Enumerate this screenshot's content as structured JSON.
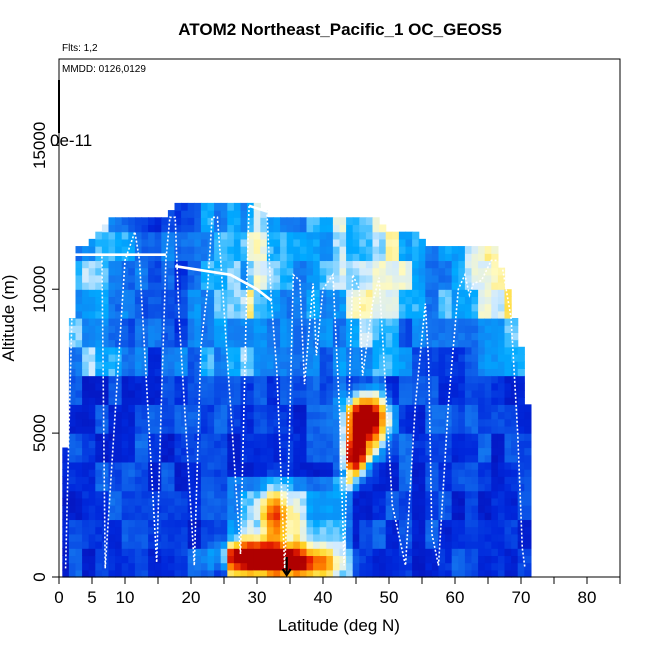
{
  "chart_data": {
    "type": "heatmap",
    "title": "ATOM2 Northeast_Pacific_1 OC_GEOS5",
    "subtitle_flights": "Flts: 1,2",
    "subtitle_dates": "MMDD: 0126,0129",
    "colorbar_max_label": "0e-11",
    "xlabel": "Latitude (deg N)",
    "ylabel": "Altitude (m)",
    "xlim": [
      0,
      85
    ],
    "ylim": [
      0,
      18000
    ],
    "x_ticks": [
      0,
      5,
      10,
      20,
      30,
      40,
      50,
      60,
      70,
      80
    ],
    "x_minor_ticks": [
      15,
      25,
      35,
      45,
      55,
      65,
      75,
      85
    ],
    "y_ticks": [
      0,
      5000,
      10000,
      15000
    ],
    "arrow_lat": 34.5,
    "curtain_tops": [
      [
        0.5,
        3000
      ],
      [
        1.5,
        6000
      ],
      [
        2,
        9000
      ],
      [
        3,
        11500
      ],
      [
        4,
        11500
      ],
      [
        6,
        12000
      ],
      [
        8,
        12300
      ],
      [
        10,
        12300
      ],
      [
        12,
        12500
      ],
      [
        14,
        12500
      ],
      [
        16,
        12500
      ],
      [
        18,
        12900
      ],
      [
        20,
        12900
      ],
      [
        22,
        12900
      ],
      [
        24,
        12900
      ],
      [
        26,
        12900
      ],
      [
        28,
        12900
      ],
      [
        30,
        12900
      ],
      [
        32,
        12500
      ],
      [
        34,
        12500
      ],
      [
        36,
        12500
      ],
      [
        38,
        12500
      ],
      [
        40,
        12500
      ],
      [
        42,
        12500
      ],
      [
        44,
        12300
      ],
      [
        46,
        12300
      ],
      [
        48,
        12300
      ],
      [
        50,
        12000
      ],
      [
        52,
        12000
      ],
      [
        54,
        12000
      ],
      [
        56,
        11500
      ],
      [
        58,
        11500
      ],
      [
        60,
        11500
      ],
      [
        62,
        11500
      ],
      [
        64,
        11500
      ],
      [
        66,
        11500
      ],
      [
        68,
        10000
      ],
      [
        69,
        9000
      ],
      [
        70,
        8000
      ],
      [
        71,
        6000
      ],
      [
        71.5,
        3000
      ]
    ],
    "hotspots": [
      {
        "lat": 46.5,
        "alt": 5500,
        "intensity": 1.0,
        "sx": 3.0,
        "sy": 900
      },
      {
        "lat": 45.0,
        "alt": 4200,
        "intensity": 0.8,
        "sx": 2.0,
        "sy": 700
      },
      {
        "lat": 30.0,
        "alt": 700,
        "intensity": 0.9,
        "sx": 5.0,
        "sy": 500
      },
      {
        "lat": 37.0,
        "alt": 500,
        "intensity": 0.55,
        "sx": 5.0,
        "sy": 500
      },
      {
        "lat": 33.0,
        "alt": 2000,
        "intensity": 0.45,
        "sx": 2.5,
        "sy": 900
      }
    ],
    "flight_track": [
      [
        1.0,
        300
      ],
      [
        1.5,
        5000
      ],
      [
        2.2,
        11200
      ],
      [
        6.5,
        11200
      ],
      [
        7.0,
        300
      ],
      [
        10.0,
        11000
      ],
      [
        11.5,
        12000
      ],
      [
        12.2,
        11000
      ],
      [
        14.8,
        500
      ],
      [
        15.5,
        6000
      ],
      [
        16.2,
        11000
      ],
      [
        16.8,
        12500
      ],
      [
        17.6,
        12500
      ],
      [
        18.2,
        9000
      ],
      [
        20.5,
        400
      ],
      [
        21.5,
        8000
      ],
      [
        22.5,
        10000
      ],
      [
        23.2,
        12500
      ],
      [
        24.0,
        12500
      ],
      [
        24.5,
        11000
      ],
      [
        27.5,
        800
      ],
      [
        28.5,
        10500
      ],
      [
        28.8,
        12900
      ],
      [
        31.5,
        12700
      ],
      [
        32.2,
        9500
      ],
      [
        33.0,
        7200
      ],
      [
        34.2,
        300
      ],
      [
        34.8,
        4000
      ],
      [
        35.5,
        10500
      ],
      [
        36.5,
        10300
      ],
      [
        37.2,
        6700
      ],
      [
        38.5,
        10200
      ],
      [
        39.0,
        7700
      ],
      [
        40.0,
        10000
      ],
      [
        41.5,
        10500
      ],
      [
        42.5,
        5800
      ],
      [
        43.2,
        400
      ],
      [
        44.5,
        10500
      ],
      [
        45.5,
        10000
      ],
      [
        46.0,
        7000
      ],
      [
        47.5,
        9500
      ],
      [
        48.5,
        10400
      ],
      [
        49.5,
        6500
      ],
      [
        50.5,
        2500
      ],
      [
        52.5,
        400
      ],
      [
        54.0,
        6000
      ],
      [
        55.5,
        9500
      ],
      [
        56.0,
        7500
      ],
      [
        56.5,
        1500
      ],
      [
        57.5,
        400
      ],
      [
        59.0,
        6000
      ],
      [
        60.5,
        10000
      ],
      [
        61.5,
        10500
      ],
      [
        62.2,
        9800
      ],
      [
        62.8,
        10200
      ],
      [
        64.0,
        10300
      ],
      [
        65.5,
        11000
      ],
      [
        67.0,
        11000
      ],
      [
        68.5,
        9000
      ],
      [
        69.5,
        5000
      ],
      [
        70.2,
        1000
      ],
      [
        70.6,
        300
      ]
    ],
    "track_segments_solid": [
      [
        [
          2.2,
          11200
        ],
        [
          16.2,
          11200
        ]
      ],
      [
        [
          17.6,
          10800
        ],
        [
          26.0,
          10500
        ],
        [
          30.0,
          10000
        ],
        [
          32.2,
          9600
        ]
      ],
      [
        [
          28.8,
          12900
        ],
        [
          31.5,
          12700
        ]
      ]
    ]
  }
}
